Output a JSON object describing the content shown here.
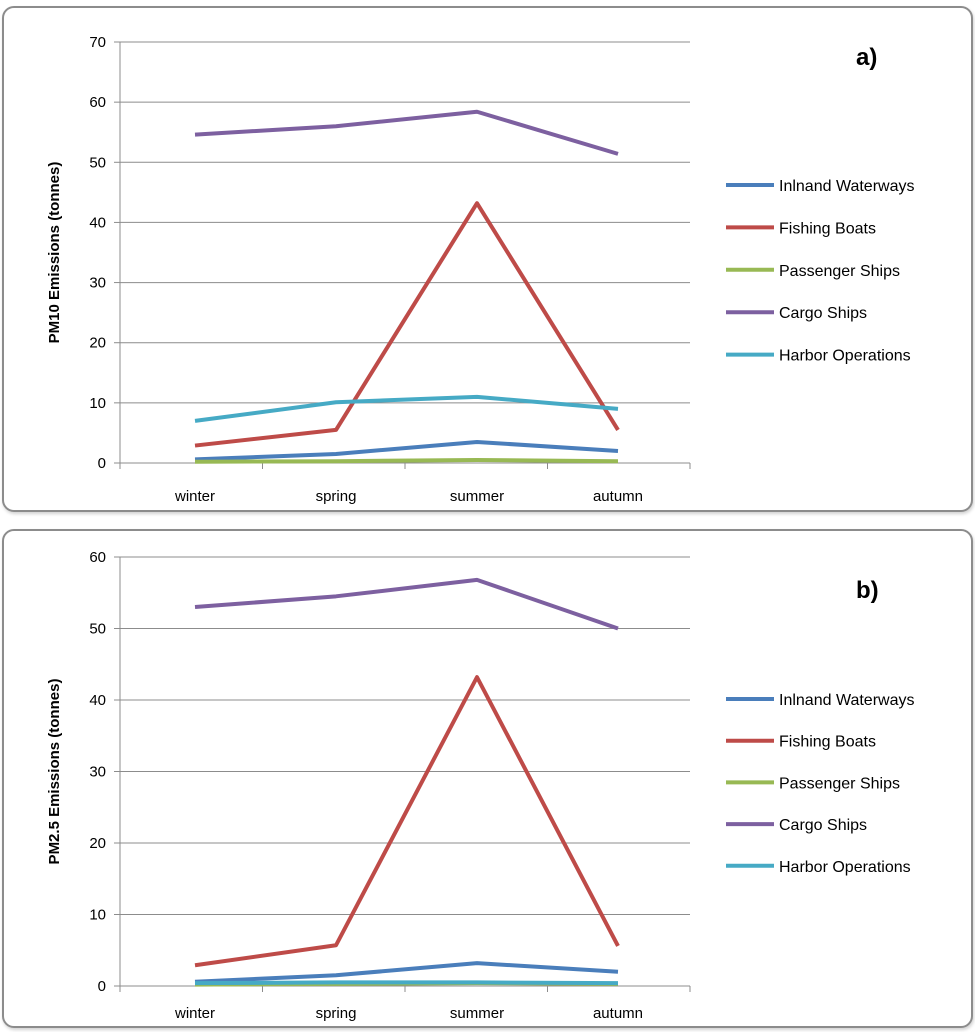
{
  "chart_data": [
    {
      "type": "line",
      "panel_label": "a)",
      "ylabel": "PM10 Emissions  (tonnes)",
      "xlabel": "",
      "categories": [
        "winter",
        "spring",
        "summer",
        "autumn"
      ],
      "ylim": [
        0,
        70
      ],
      "yticks": [
        0,
        10,
        20,
        30,
        40,
        50,
        60,
        70
      ],
      "grid": true,
      "legend": "right",
      "series": [
        {
          "name": "Inlnand Waterways",
          "color": "#4a7ebb",
          "values": [
            0.6,
            1.5,
            3.5,
            2.0
          ]
        },
        {
          "name": "Fishing Boats",
          "color": "#be4b48",
          "values": [
            2.9,
            5.5,
            43.2,
            5.5
          ]
        },
        {
          "name": "Passenger Ships",
          "color": "#98b954",
          "values": [
            0.2,
            0.3,
            0.5,
            0.3
          ]
        },
        {
          "name": "Cargo Ships",
          "color": "#7d60a0",
          "values": [
            54.6,
            56.0,
            58.4,
            51.4
          ]
        },
        {
          "name": "Harbor Operations",
          "color": "#46aac5",
          "values": [
            7.0,
            10.1,
            11.0,
            9.0
          ]
        }
      ]
    },
    {
      "type": "line",
      "panel_label": "b)",
      "ylabel": "PM2.5 Emissions  (tonnes)",
      "xlabel": "",
      "categories": [
        "winter",
        "spring",
        "summer",
        "autumn"
      ],
      "ylim": [
        0,
        60
      ],
      "yticks": [
        0,
        10,
        20,
        30,
        40,
        50,
        60
      ],
      "grid": true,
      "legend": "right",
      "series": [
        {
          "name": "Inlnand Waterways",
          "color": "#4a7ebb",
          "values": [
            0.6,
            1.5,
            3.2,
            2.0
          ]
        },
        {
          "name": "Fishing Boats",
          "color": "#be4b48",
          "values": [
            2.9,
            5.7,
            43.2,
            5.6
          ]
        },
        {
          "name": "Passenger Ships",
          "color": "#98b954",
          "values": [
            0.2,
            0.3,
            0.4,
            0.3
          ]
        },
        {
          "name": "Cargo Ships",
          "color": "#7d60a0",
          "values": [
            53.0,
            54.5,
            56.8,
            50.0
          ]
        },
        {
          "name": "Harbor Operations",
          "color": "#46aac5",
          "values": [
            0.4,
            0.5,
            0.5,
            0.4
          ]
        }
      ]
    }
  ]
}
